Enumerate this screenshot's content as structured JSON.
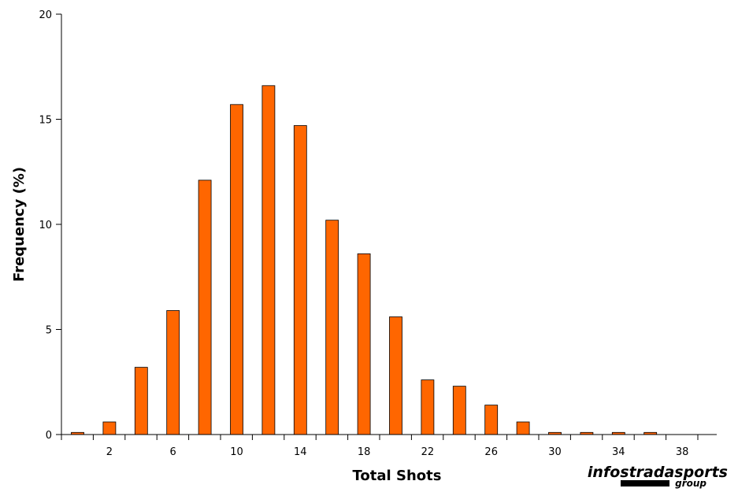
{
  "chart_data": {
    "type": "bar",
    "title": "",
    "xlabel": "Total Shots",
    "ylabel": "Frequency (%)",
    "ylim": [
      0,
      20
    ],
    "yticks": [
      "0",
      "5",
      "10",
      "15",
      "20"
    ],
    "xticks": [
      "2",
      "6",
      "10",
      "14",
      "18",
      "22",
      "26",
      "30",
      "34",
      "38"
    ],
    "x": [
      0,
      2,
      4,
      6,
      8,
      10,
      12,
      14,
      16,
      18,
      20,
      22,
      24,
      26,
      28,
      30,
      32,
      34,
      36
    ],
    "values": [
      0.1,
      0.6,
      3.2,
      5.9,
      12.1,
      15.7,
      16.6,
      14.7,
      10.2,
      8.6,
      5.6,
      2.6,
      2.3,
      1.4,
      0.6,
      0.1,
      0.1,
      0.1,
      0.1
    ],
    "bar_color": "#ff6600",
    "grid": false,
    "legend": "none"
  },
  "logo": {
    "main": "infostradasports",
    "sub": "group"
  }
}
